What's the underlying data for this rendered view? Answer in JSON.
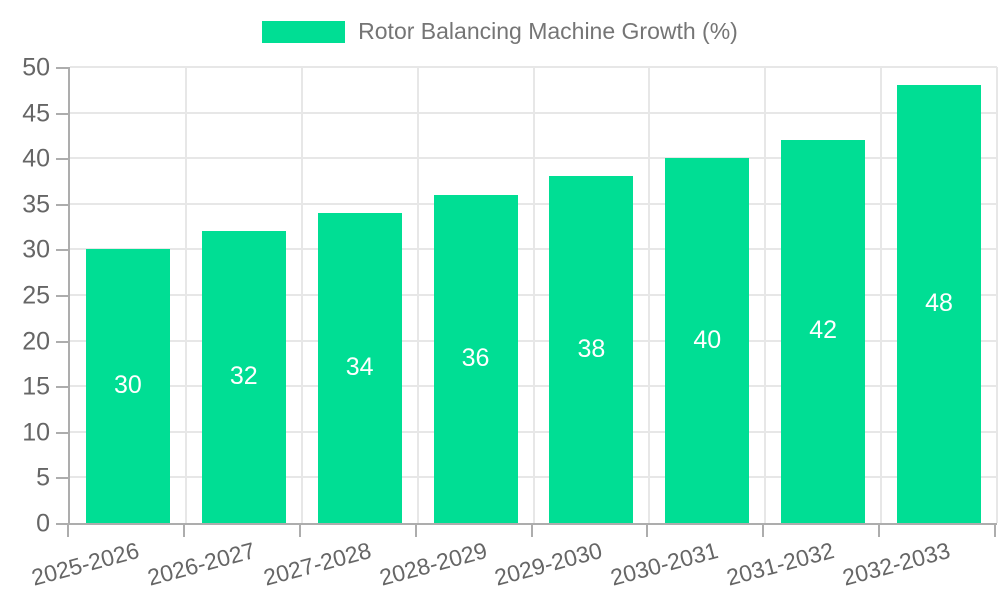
{
  "chart_data": {
    "type": "bar",
    "title": "Rotor Balancing Machine Growth (%)",
    "categories": [
      "2025-2026",
      "2026-2027",
      "2027-2028",
      "2028-2029",
      "2029-2030",
      "2030-2031",
      "2031-2032",
      "2032-2033"
    ],
    "values": [
      30,
      32,
      34,
      36,
      38,
      40,
      42,
      48
    ],
    "xlabel": "",
    "ylabel": "",
    "ylim": [
      0,
      50
    ],
    "ytick_step": 5,
    "grid": true,
    "legend_position": "top",
    "bar_label_position": "inside-center"
  },
  "legend": {
    "label": "Rotor Balancing Machine Growth (%)"
  },
  "colors": {
    "bar": "#00DE94",
    "bar_label": "#FFFFFF",
    "axis_line": "#ADADAD",
    "grid_line": "#E7E7E7",
    "tick_text": "#666666",
    "legend_text": "#757575",
    "background": "#FFFFFF"
  }
}
